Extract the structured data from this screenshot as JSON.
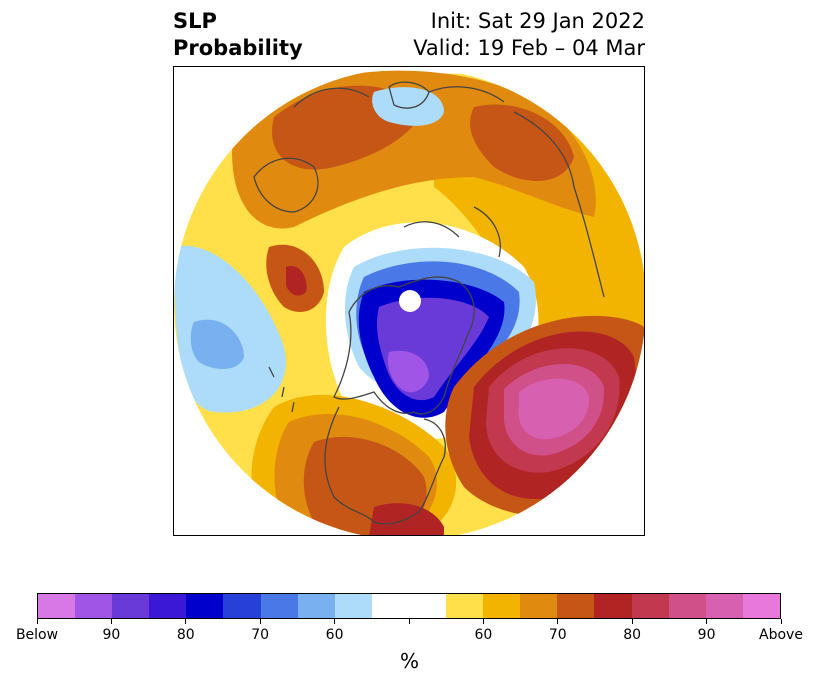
{
  "title": {
    "left_line1": "SLP",
    "left_line2": "Probability",
    "right_line1": "Init: Sat 29 Jan 2022",
    "right_line2": "Valid: 19 Feb – 04 Mar"
  },
  "colorbar": {
    "colors": [
      "#d878e6",
      "#a055e6",
      "#6a3ad8",
      "#3a18d6",
      "#0000cc",
      "#2640d8",
      "#4a78e6",
      "#78b0f0",
      "#acdcfa",
      "#ffffff",
      "#ffffff",
      "#ffe04a",
      "#f2b400",
      "#e08a10",
      "#c65616",
      "#b02424",
      "#c2384e",
      "#d0508a",
      "#d860b0",
      "#e878dc"
    ],
    "tick_labels": [
      "Below",
      "90",
      "80",
      "70",
      "60",
      "",
      "60",
      "70",
      "80",
      "90",
      "Above"
    ],
    "unit_label": "%"
  },
  "map": {
    "colors": {
      "pale_yellow": "#ffe04a",
      "gold": "#f2b400",
      "orange": "#e08a10",
      "rust": "#c65616",
      "red": "#b02424",
      "crimson": "#c2384e",
      "rose": "#d0508a",
      "magenta": "#d860b0",
      "light_blue": "#acdcfa",
      "sky_blue": "#78b0f0",
      "mid_blue": "#4a78e6",
      "blue": "#2640d8",
      "deep_blue": "#0000cc",
      "indigo": "#3a18d6",
      "violet": "#6a3ad8",
      "purple": "#a055e6",
      "coastline": "#444444"
    }
  }
}
